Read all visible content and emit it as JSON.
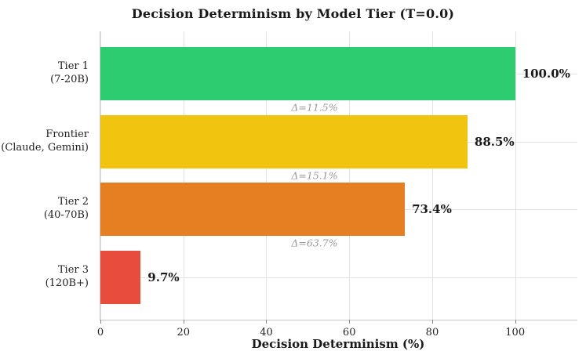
{
  "chart_data": {
    "type": "bar",
    "orientation": "horizontal",
    "title": "Decision Determinism by Model Tier (T=0.0)",
    "xlabel": "Decision Determinism (%)",
    "xlim": [
      0,
      115
    ],
    "xticks": [
      0,
      20,
      40,
      60,
      80,
      100
    ],
    "grid": true,
    "legend": "none",
    "bars": [
      {
        "label": "Tier 1",
        "sublabel": "(7-20B)",
        "value": 100.0,
        "value_label": "100.0%",
        "color": "#2ecc71"
      },
      {
        "label": "Frontier",
        "sublabel": "(Claude, Gemini)",
        "value": 88.5,
        "value_label": "88.5%",
        "color": "#f1c40f"
      },
      {
        "label": "Tier 2",
        "sublabel": "(40-70B)",
        "value": 73.4,
        "value_label": "73.4%",
        "color": "#e67e22"
      },
      {
        "label": "Tier 3",
        "sublabel": "(120B+)",
        "value": 9.7,
        "value_label": "9.7%",
        "color": "#e74c3c"
      }
    ],
    "deltas": [
      "Δ=11.5%",
      "Δ=15.1%",
      "Δ=63.7%"
    ]
  }
}
